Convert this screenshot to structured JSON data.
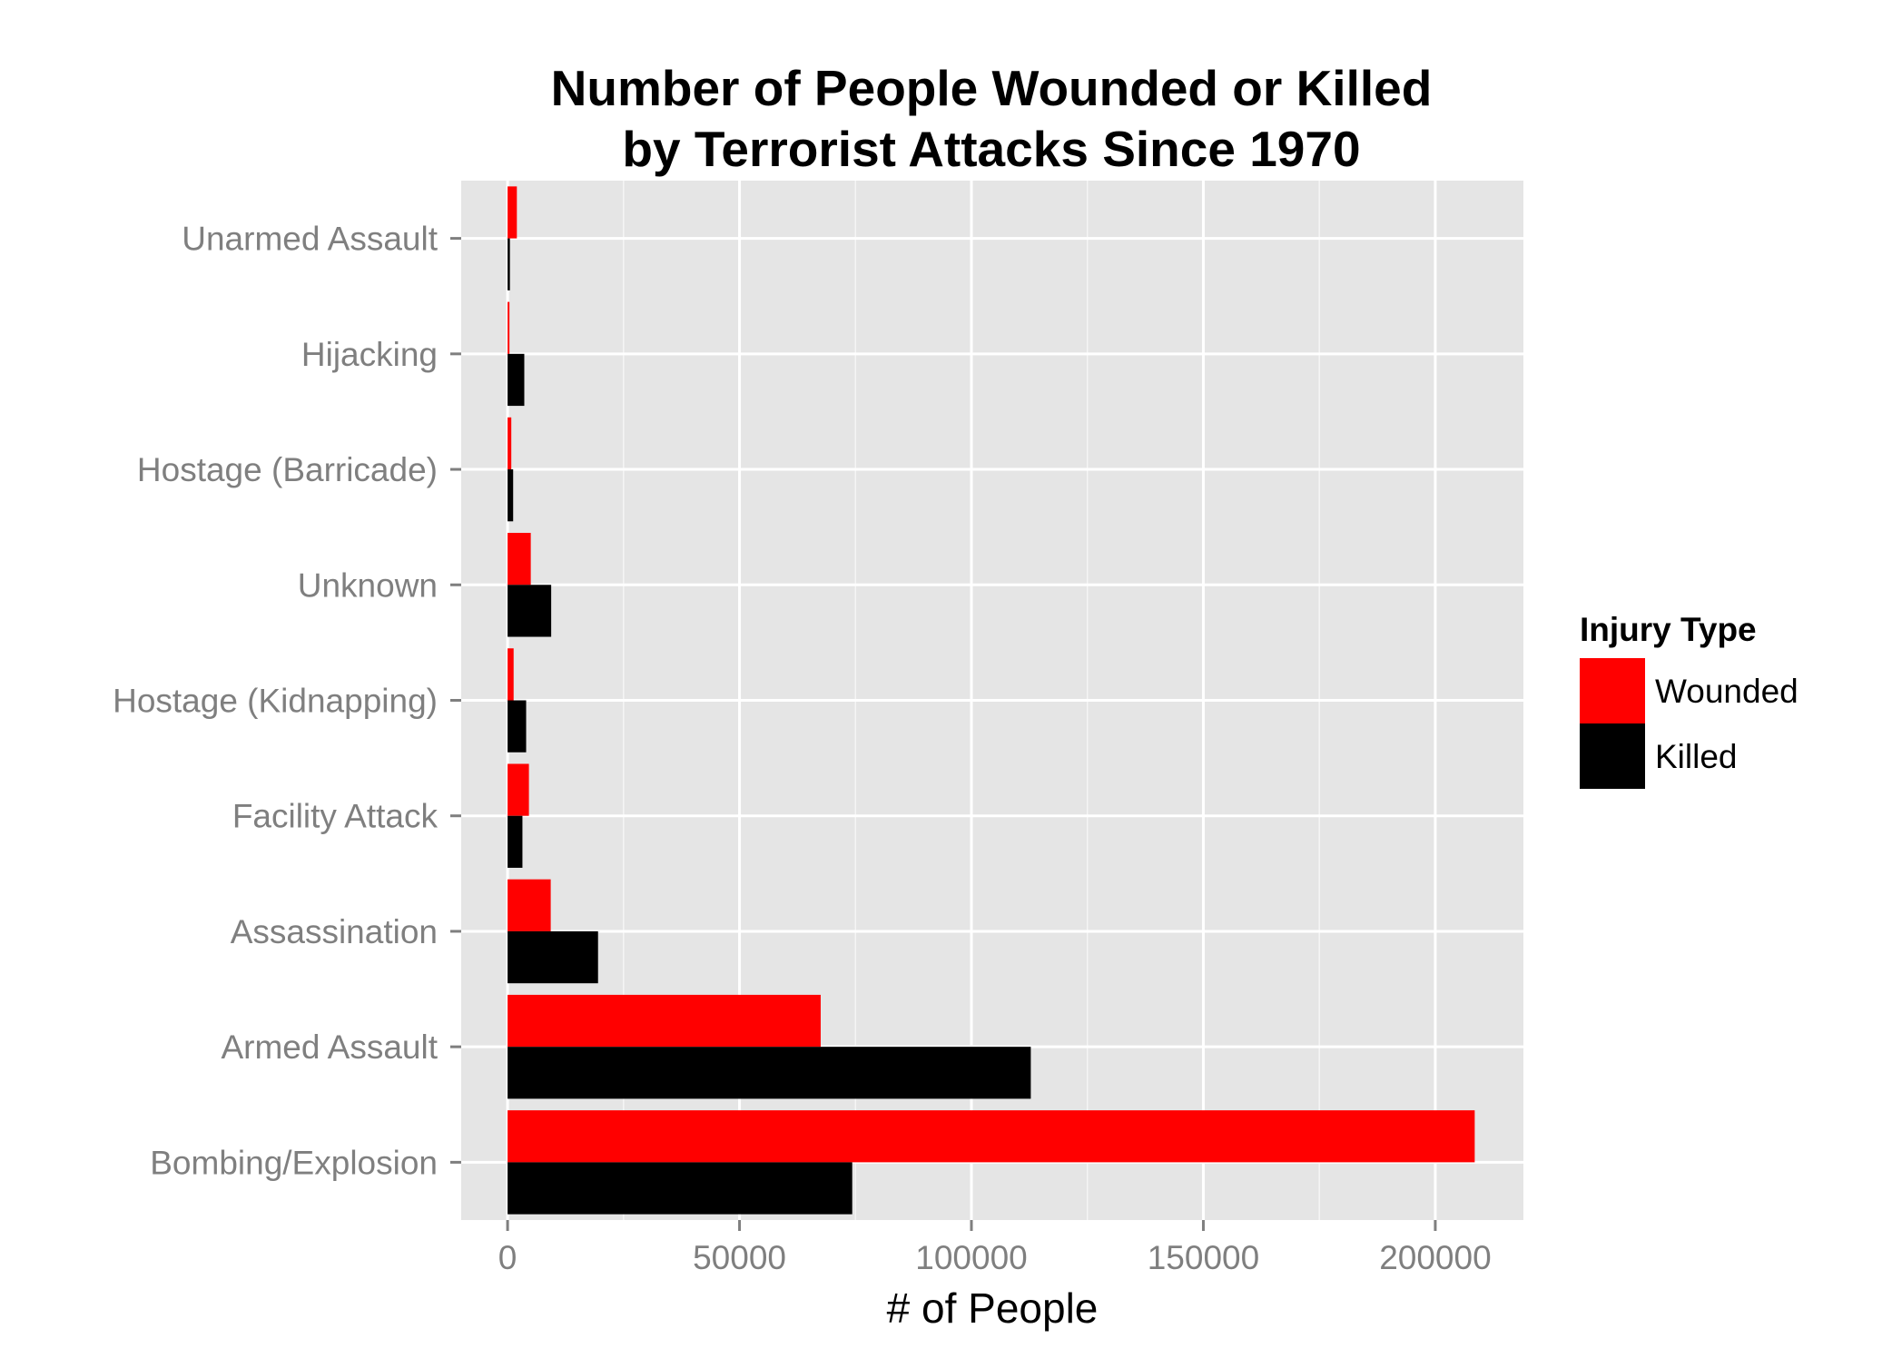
{
  "chart_data": {
    "type": "bar",
    "orientation": "horizontal",
    "title_line1": "Number of People Wounded or Killed",
    "title_line2": "by Terrorist Attacks Since 1970",
    "xlabel": "# of People",
    "ylabel": "",
    "categories": [
      "Unarmed Assault",
      "Hijacking",
      "Hostage (Barricade)",
      "Unknown",
      "Hostage (Kidnapping)",
      "Facility Attack",
      "Assassination",
      "Armed Assault",
      "Bombing/Explosion"
    ],
    "series": [
      {
        "name": "Wounded",
        "color": "#ff0000",
        "values": [
          2000,
          400,
          800,
          5000,
          1300,
          4600,
          9300,
          67500,
          208500
        ]
      },
      {
        "name": "Killed",
        "color": "#000000",
        "values": [
          500,
          3600,
          1200,
          9400,
          4000,
          3200,
          19500,
          112800,
          74300
        ]
      }
    ],
    "xlim": [
      -10000,
      219000
    ],
    "xticks": [
      0,
      50000,
      100000,
      150000,
      200000
    ],
    "xtick_labels": [
      "0",
      "50000",
      "100000",
      "150000",
      "200000"
    ],
    "x_minor_ticks": [
      25000,
      75000,
      125000,
      175000
    ],
    "grid": true,
    "legend": {
      "title": "Injury Type",
      "position": "right",
      "entries": [
        "Wounded",
        "Killed"
      ]
    },
    "panel_background": "#e5e5e5",
    "grid_color": "#ffffff",
    "axis_text_color": "#7f7f7f"
  }
}
